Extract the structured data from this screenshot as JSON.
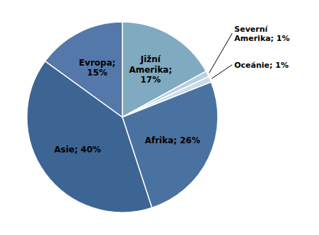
{
  "chart_data": {
    "type": "pie",
    "categories": [
      "Jižní\nAmerika;\n17%",
      "Severní\nAmerika; 1%",
      "Oceánie; 1%",
      "Afrika; 26%",
      "Asie; 40%",
      "Evropa;\n15%"
    ],
    "values": [
      17,
      1,
      1,
      26,
      40,
      15
    ],
    "colors": [
      "#7faabf",
      "#b8cfe0",
      "#c8dcea",
      "#4a72a0",
      "#3d6594",
      "#5578aa"
    ]
  }
}
